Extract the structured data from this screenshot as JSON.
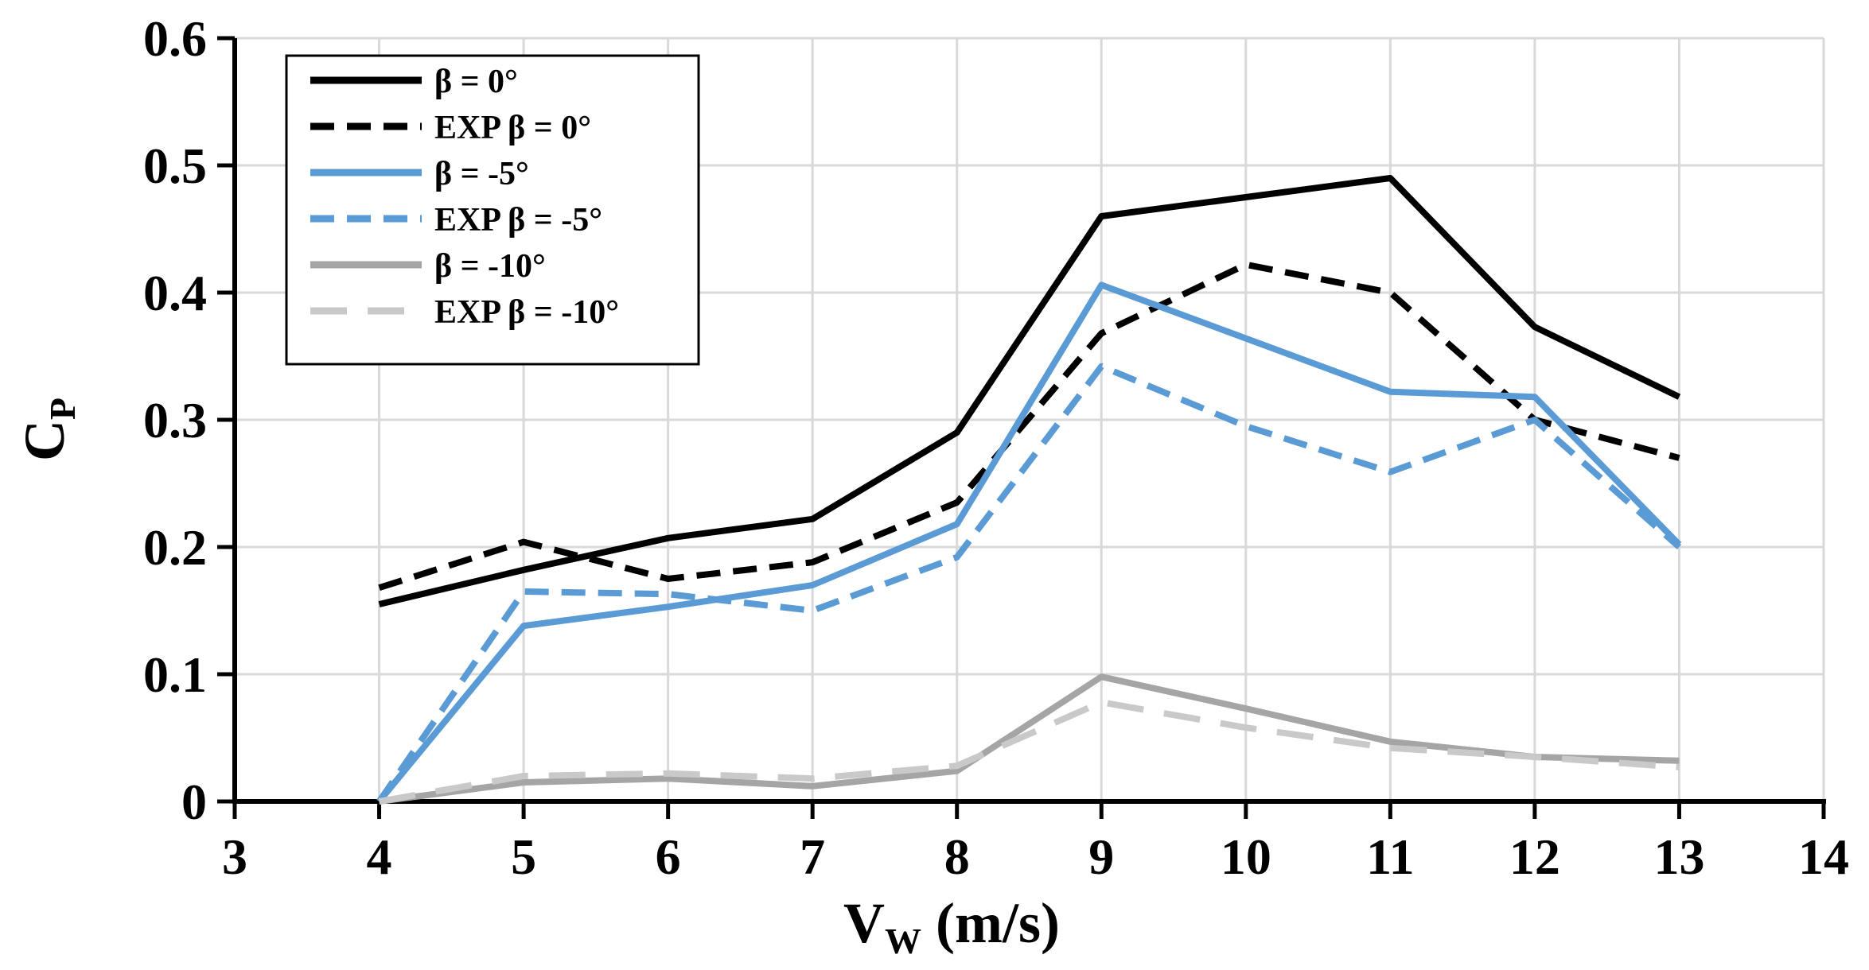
{
  "chart_data": {
    "type": "line",
    "title": "",
    "xlabel": "V",
    "xlabel_sub": "W",
    "xlabel_unit": " (m/s)",
    "ylabel": "C",
    "ylabel_sub": "P",
    "xlim": [
      3,
      14
    ],
    "ylim": [
      0,
      0.6
    ],
    "xticks": [
      3,
      4,
      5,
      6,
      7,
      8,
      9,
      10,
      11,
      12,
      13,
      14
    ],
    "xtick_labels": [
      "3",
      "4",
      "5",
      "6",
      "7",
      "8",
      "9",
      "10",
      "11",
      "12",
      "13",
      "14"
    ],
    "yticks": [
      0,
      0.1,
      0.2,
      0.3,
      0.4,
      0.5,
      0.6
    ],
    "ytick_labels": [
      "0",
      "0.1",
      "0.2",
      "0.3",
      "0.4",
      "0.5",
      "0.6"
    ],
    "grid": true,
    "legend_position": "top-left",
    "x": [
      4,
      5,
      6,
      7,
      8,
      9,
      10,
      11,
      12,
      13
    ],
    "series": [
      {
        "name": "β = 0°",
        "color": "#000000",
        "dash": "solid",
        "values": [
          0.155,
          0.182,
          0.207,
          0.222,
          0.29,
          0.46,
          0.475,
          0.49,
          0.373,
          0.318
        ]
      },
      {
        "name": "EXP β = 0°",
        "color": "#000000",
        "dash": "dashed",
        "values": [
          0.168,
          0.204,
          0.175,
          0.188,
          0.235,
          0.368,
          0.422,
          0.4,
          0.3,
          0.27
        ]
      },
      {
        "name": "β = -5°",
        "color": "#5b9bd5",
        "dash": "solid",
        "values": [
          0.0,
          0.138,
          0.153,
          0.17,
          0.218,
          0.406,
          0.364,
          0.322,
          0.318,
          0.202
        ]
      },
      {
        "name": "EXP β = -5°",
        "color": "#5b9bd5",
        "dash": "dashed",
        "values": [
          0.0,
          0.165,
          0.163,
          0.15,
          0.192,
          0.342,
          0.295,
          0.259,
          0.3,
          0.2
        ]
      },
      {
        "name": "β = -10°",
        "color": "#a5a5a5",
        "dash": "solid",
        "values": [
          0.0,
          0.015,
          0.018,
          0.012,
          0.024,
          0.098,
          0.073,
          0.047,
          0.035,
          0.032
        ]
      },
      {
        "name": "EXP β = -10°",
        "color": "#c9c9c9",
        "dash": "longdash",
        "values": [
          0.0,
          0.02,
          0.022,
          0.018,
          0.028,
          0.078,
          0.058,
          0.042,
          0.035,
          0.027
        ]
      }
    ]
  }
}
